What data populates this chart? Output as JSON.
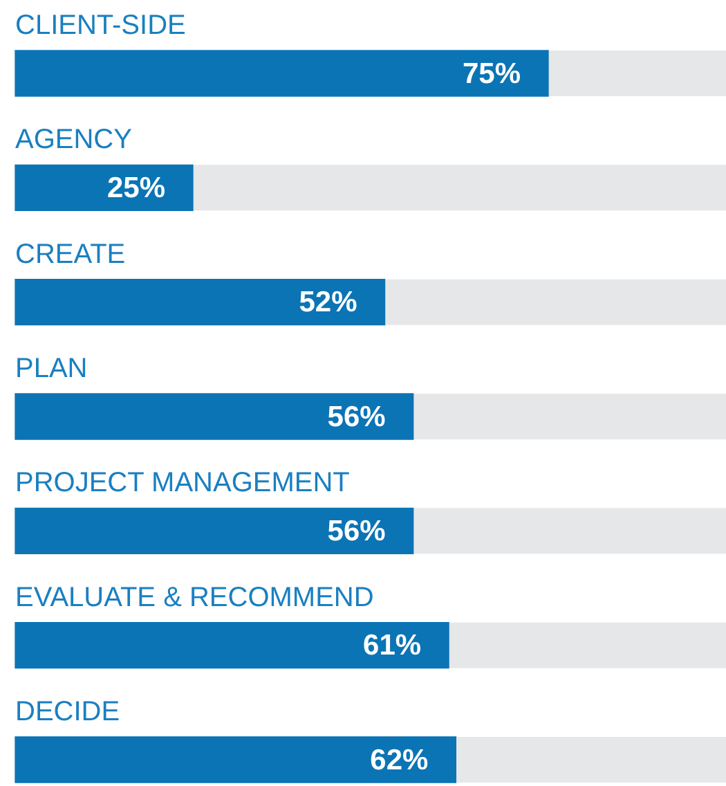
{
  "chart_data": {
    "type": "bar",
    "orientation": "horizontal",
    "categories": [
      "CLIENT-SIDE",
      "AGENCY",
      "CREATE",
      "PLAN",
      "PROJECT MANAGEMENT",
      "EVALUATE & RECOMMEND",
      "DECIDE"
    ],
    "values": [
      75,
      25,
      52,
      56,
      56,
      61,
      62
    ],
    "color": "#0b74b5",
    "value_labels": [
      "75%",
      "25%",
      "52%",
      "56%",
      "56%",
      "61%",
      "62%"
    ],
    "xlim": [
      0,
      100
    ]
  }
}
